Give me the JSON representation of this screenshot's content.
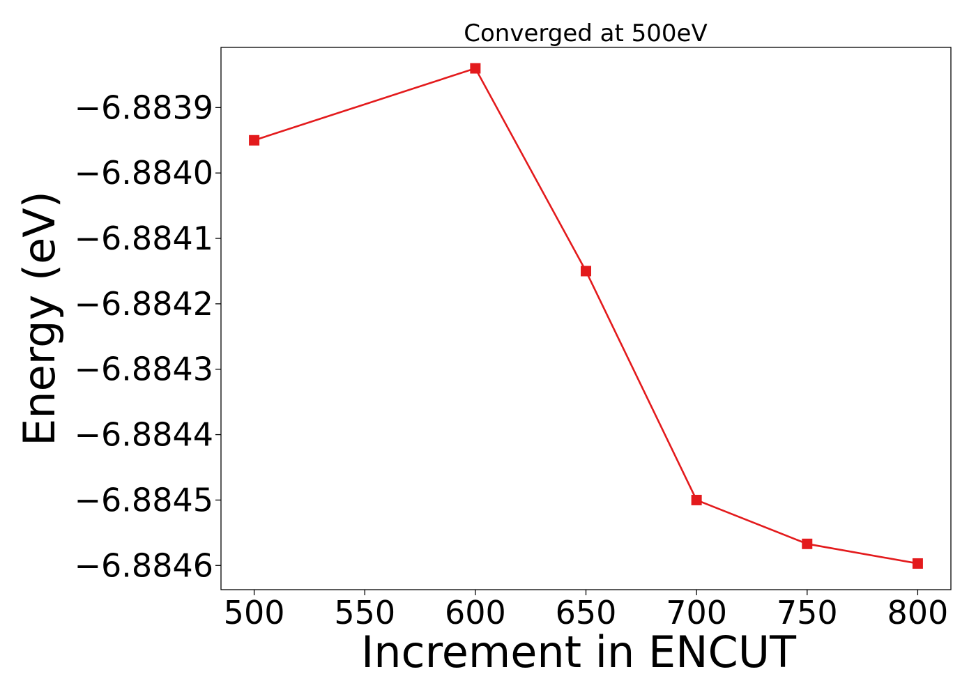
{
  "chart_data": {
    "type": "line",
    "title": "Converged at 500eV",
    "xlabel": "Increment in ENCUT",
    "ylabel": "Energy (eV)",
    "x": [
      500,
      600,
      650,
      700,
      750,
      800
    ],
    "series": [
      {
        "values": [
          -6.88395,
          -6.88384,
          -6.88415,
          -6.8845,
          -6.884567,
          -6.884597
        ],
        "color": "#e31a1c",
        "marker": "square"
      }
    ],
    "xlim": [
      485,
      815
    ],
    "ylim": [
      -6.884637,
      -6.883808
    ],
    "xticks": [
      500,
      550,
      600,
      650,
      700,
      750,
      800
    ],
    "xtick_labels": [
      "500",
      "550",
      "600",
      "650",
      "700",
      "750",
      "800"
    ],
    "yticks": [
      -6.8839,
      -6.884,
      -6.8841,
      -6.8842,
      -6.8843,
      -6.8844,
      -6.8845,
      -6.8846
    ],
    "ytick_labels": [
      "−6.8839",
      "−6.8840",
      "−6.8841",
      "−6.8842",
      "−6.8843",
      "−6.8844",
      "−6.8845",
      "−6.8846"
    ],
    "grid": false,
    "legend": "none"
  }
}
